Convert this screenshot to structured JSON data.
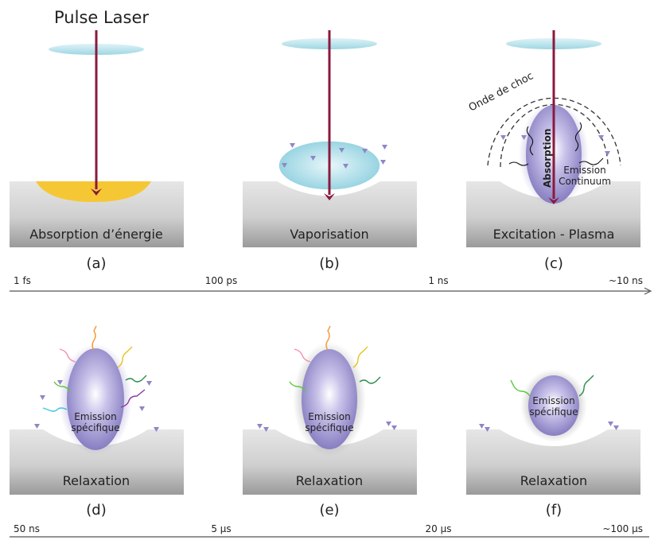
{
  "title": "Pulse Laser",
  "panels": [
    {
      "letter": "(a)",
      "caption": "Absorption d’énergie"
    },
    {
      "letter": "(b)",
      "caption": "Vaporisation"
    },
    {
      "letter": "(c)",
      "caption": "Excitation - Plasma",
      "shock_label": "Onde de choc",
      "absorption_label": "Absorption",
      "emission_label_1": "Emission",
      "emission_label_2": "Continuum"
    },
    {
      "letter": "(d)",
      "caption": "Relaxation",
      "emission_label_1": "Emission",
      "emission_label_2": "spécifique"
    },
    {
      "letter": "(e)",
      "caption": "Relaxation",
      "emission_label_1": "Emission",
      "emission_label_2": "spécifique"
    },
    {
      "letter": "(f)",
      "caption": "Relaxation",
      "emission_label_1": "Emission",
      "emission_label_2": "spécifique"
    }
  ],
  "timeline_top": [
    "1 fs",
    "100 ps",
    "1 ns",
    "~10 ns"
  ],
  "timeline_bottom": [
    "50 ns",
    "5 µs",
    "20 µs",
    "~100 µs"
  ],
  "colors": {
    "laser": "#8b1a3d",
    "energy": "#f6c735",
    "vapor": "#a9dde8",
    "plasma": "#8f86c6",
    "lens": "#bfe6ee",
    "block_top": "#e3e3e3",
    "block_bottom": "#9a9a9a"
  }
}
